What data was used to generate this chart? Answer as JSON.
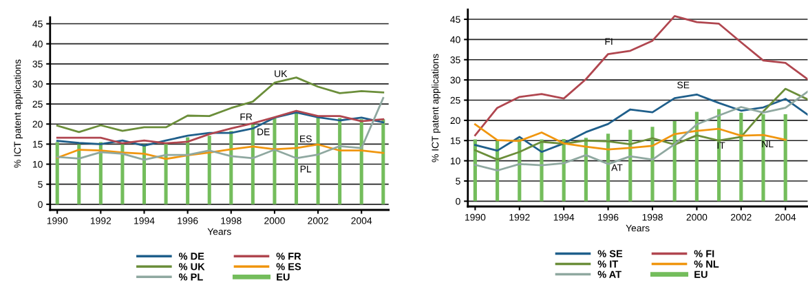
{
  "chart_data": [
    {
      "type": "line",
      "xlabel": "Years",
      "ylabel": "% ICT patent applications",
      "x": [
        1990,
        1991,
        1992,
        1993,
        1994,
        1995,
        1996,
        1997,
        1998,
        1999,
        2000,
        2001,
        2002,
        2003,
        2004,
        2005
      ],
      "xlim": [
        1989.67,
        2005.25
      ],
      "xticks": [
        1990,
        1992,
        1994,
        1996,
        1998,
        2000,
        2002,
        2004
      ],
      "ylim": [
        -1.4,
        46.6
      ],
      "yticks": [
        0,
        5,
        10,
        15,
        20,
        25,
        30,
        35,
        40,
        45
      ],
      "grid": "y",
      "legend": "bottom",
      "series": [
        {
          "name": "EU",
          "type": "bar",
          "color": "#74bd5c",
          "values": [
            15.5,
            15.0,
            15.5,
            15.0,
            15.0,
            15.2,
            16.7,
            17.1,
            18.3,
            19.9,
            21.5,
            22.9,
            21.7,
            21.5,
            21.2,
            21.2
          ]
        },
        {
          "name": "% DE",
          "type": "line",
          "color": "#1f5f8b",
          "values": [
            15.8,
            15.3,
            15.0,
            15.9,
            14.6,
            15.9,
            17.1,
            17.8,
            17.8,
            18.9,
            21.6,
            22.9,
            21.7,
            20.9,
            21.6,
            20.4
          ]
        },
        {
          "name": "% FR",
          "type": "line",
          "color": "#b0464f",
          "values": [
            16.6,
            16.6,
            16.6,
            15.2,
            15.9,
            15.2,
            15.6,
            17.5,
            18.9,
            20.2,
            21.7,
            23.3,
            22.0,
            22.0,
            20.7,
            21.2
          ]
        },
        {
          "name": "% UK",
          "type": "line",
          "color": "#6b8e3a",
          "values": [
            19.6,
            18.0,
            19.7,
            18.3,
            19.2,
            19.2,
            22.1,
            22.0,
            24.0,
            25.6,
            30.3,
            31.6,
            29.3,
            27.7,
            28.2,
            27.9
          ]
        },
        {
          "name": "% ES",
          "type": "line",
          "color": "#f0960f",
          "values": [
            11.6,
            13.6,
            13.4,
            12.9,
            12.6,
            11.3,
            12.2,
            12.9,
            13.7,
            14.4,
            13.7,
            14.0,
            14.9,
            13.4,
            13.4,
            12.8
          ]
        },
        {
          "name": "% PL",
          "type": "line",
          "color": "#8fa8a0",
          "values": [
            11.8,
            11.4,
            13.0,
            12.6,
            11.1,
            12.3,
            12.3,
            13.4,
            12.0,
            11.5,
            13.6,
            11.5,
            12.4,
            14.5,
            14.0,
            26.5
          ]
        }
      ],
      "annotations": [
        "UK",
        "FR",
        "DE",
        "ES",
        "PL"
      ]
    },
    {
      "type": "line",
      "xlabel": "Years",
      "ylabel": "% ICT patent applications",
      "x": [
        1990,
        1991,
        1992,
        1993,
        1994,
        1995,
        1996,
        1997,
        1998,
        1999,
        2000,
        2001,
        2002,
        2003,
        2004,
        2005
      ],
      "xlim": [
        1989.67,
        2005.0
      ],
      "xticks": [
        1990,
        1992,
        1994,
        1996,
        1998,
        2000,
        2002,
        2004
      ],
      "ylim": [
        -1.3,
        47.4
      ],
      "yticks": [
        0,
        5,
        10,
        15,
        20,
        25,
        30,
        35,
        40,
        45
      ],
      "grid": "y",
      "legend": "bottom",
      "series": [
        {
          "name": "EU",
          "type": "bar",
          "color": "#74bd5c",
          "values": [
            15.3,
            14.9,
            15.4,
            15.3,
            15.4,
            15.7,
            16.7,
            17.7,
            18.4,
            19.8,
            22.1,
            22.8,
            21.9,
            21.5,
            21.5,
            null
          ]
        },
        {
          "name": "% SE",
          "type": "line",
          "color": "#1f5f8b",
          "values": [
            13.9,
            12.5,
            15.9,
            12.2,
            14.3,
            17.1,
            19.1,
            22.7,
            22.0,
            25.5,
            26.4,
            24.3,
            22.4,
            23.2,
            25.3,
            21.4
          ]
        },
        {
          "name": "% FI",
          "type": "line",
          "color": "#b0464f",
          "values": [
            16.3,
            23.1,
            25.8,
            26.5,
            25.4,
            30.2,
            36.4,
            37.2,
            39.7,
            45.8,
            44.3,
            43.9,
            39.3,
            34.8,
            34.2,
            30.2
          ]
        },
        {
          "name": "% IT",
          "type": "line",
          "color": "#6b8e3a",
          "values": [
            12.6,
            10.3,
            12.2,
            14.7,
            14.2,
            15.0,
            14.8,
            14.1,
            15.6,
            14.0,
            16.3,
            15.0,
            15.9,
            22.2,
            27.8,
            25.2
          ]
        },
        {
          "name": "% NL",
          "type": "line",
          "color": "#f0960f",
          "values": [
            19.0,
            15.1,
            14.9,
            17.0,
            14.3,
            13.5,
            12.8,
            13.2,
            13.7,
            16.6,
            17.4,
            17.9,
            16.2,
            16.4,
            15.2,
            null
          ]
        },
        {
          "name": "% AT",
          "type": "line",
          "color": "#8fa8a0",
          "values": [
            9.0,
            7.6,
            9.2,
            8.9,
            9.4,
            11.4,
            9.2,
            11.1,
            10.3,
            14.1,
            19.0,
            21.2,
            23.3,
            21.9,
            23.1,
            27.1
          ]
        }
      ],
      "annotations": [
        "FI",
        "SE",
        "AT",
        "IT",
        "NL"
      ]
    }
  ]
}
